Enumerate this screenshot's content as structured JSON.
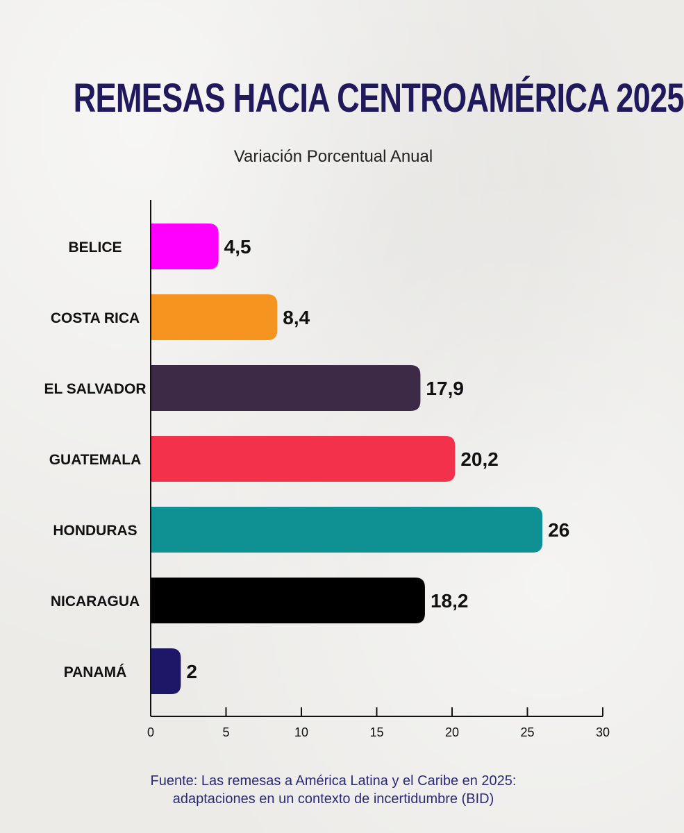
{
  "header": {
    "title": "REMESAS HACIA CENTROAMÉRICA 2025",
    "subtitle": "Variación Porcentual Anual"
  },
  "footer": {
    "source_line1": "Fuente: Las remesas a América Latina y el Caribe en 2025:",
    "source_line2": "adaptaciones en un contexto de incertidumbre (BID)"
  },
  "chart_data": {
    "type": "bar",
    "orientation": "horizontal",
    "title": "REMESAS HACIA CENTROAMÉRICA 2025",
    "subtitle": "Variación Porcentual Anual",
    "categories": [
      "BELICE",
      "COSTA RICA",
      "EL SALVADOR",
      "GUATEMALA",
      "HONDURAS",
      "NICARAGUA",
      "PANAMÁ"
    ],
    "values": [
      4.5,
      8.4,
      17.9,
      20.2,
      26,
      18.2,
      2
    ],
    "value_labels": [
      "4,5",
      "8,4",
      "17,9",
      "20,2",
      "26",
      "18,2",
      "2"
    ],
    "colors": [
      "#ff00ff",
      "#f5941f",
      "#3c2a47",
      "#f4314b",
      "#0f9093",
      "#000000",
      "#1e1666"
    ],
    "xlim": [
      0,
      30
    ],
    "xticks": [
      0,
      5,
      10,
      15,
      20,
      25,
      30
    ],
    "xlabel": "",
    "ylabel": "",
    "grid": false,
    "legend": "none"
  }
}
